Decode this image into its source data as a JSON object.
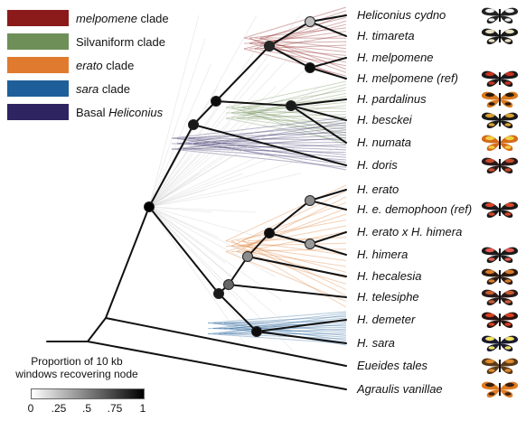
{
  "legend": {
    "items": [
      {
        "label": "",
        "label_italic": "melpomene",
        "label_rest": " clade",
        "color": "#8b1a1a"
      },
      {
        "label": "Silvaniform clade",
        "label_italic": "",
        "label_rest": "",
        "color": "#6e8f57"
      },
      {
        "label": "",
        "label_italic": "erato",
        "label_rest": " clade",
        "color": "#e07a2e"
      },
      {
        "label": "",
        "label_italic": "sara",
        "label_rest": " clade",
        "color": "#1f5f99"
      },
      {
        "label": "Basal ",
        "label_italic": "Heliconius",
        "label_rest": "",
        "color": "#2e2560"
      }
    ]
  },
  "taxa": [
    {
      "name": "Heliconius cydno",
      "wing_color": "#222222",
      "wing_accent": "#f2f2f2"
    },
    {
      "name": "H. timareta",
      "wing_color": "#1a1a1a",
      "wing_accent": "#e8e0c0"
    },
    {
      "name": "H. melpomene",
      "wing_color": "",
      "wing_accent": ""
    },
    {
      "name": "H. melpomene (ref)",
      "wing_color": "#1a1a1a",
      "wing_accent": "#c8321e"
    },
    {
      "name": "H. pardalinus",
      "wing_color": "#d9791c",
      "wing_accent": "#2a1a0a"
    },
    {
      "name": "H. besckei",
      "wing_color": "#1a1a1a",
      "wing_accent": "#d8a030"
    },
    {
      "name": "H. numata",
      "wing_color": "#d46a1a",
      "wing_accent": "#f0d040"
    },
    {
      "name": "H. doris",
      "wing_color": "#2a1a1a",
      "wing_accent": "#c84a2a"
    },
    {
      "name": "H. erato",
      "wing_color": "",
      "wing_accent": ""
    },
    {
      "name": "H. e. demophoon (ref)",
      "wing_color": "#1a1a1a",
      "wing_accent": "#d8462a"
    },
    {
      "name": "H. erato x H. himera",
      "wing_color": "",
      "wing_accent": ""
    },
    {
      "name": "H. himera",
      "wing_color": "#1a1a1a",
      "wing_accent": "#e85a50"
    },
    {
      "name": "H. hecalesia",
      "wing_color": "#2a1a10",
      "wing_accent": "#d87a2a"
    },
    {
      "name": "H. telesiphe",
      "wing_color": "#2a1a1a",
      "wing_accent": "#c85a30"
    },
    {
      "name": "H. demeter",
      "wing_color": "#2a1410",
      "wing_accent": "#d84020"
    },
    {
      "name": "H. sara",
      "wing_color": "#1a1a30",
      "wing_accent": "#f0e060"
    },
    {
      "name": "Eueides tales",
      "wing_color": "#5a3a1a",
      "wing_accent": "#e08a2a"
    },
    {
      "name": "Agraulis vanillae",
      "wing_color": "#e07a20",
      "wing_accent": "#3a2010"
    }
  ],
  "scale": {
    "title_line1": "Proportion of 10 kb",
    "title_line2": "windows recovering node",
    "ticks": [
      "0",
      ".25",
      ".5",
      ".75",
      "1"
    ],
    "tick_values": [
      0,
      0.25,
      0.5,
      0.75,
      1
    ]
  },
  "nodes": [
    {
      "id": "cydno_timareta",
      "support": 0.25
    },
    {
      "id": "melpomene_pair",
      "support": 0.95
    },
    {
      "id": "melpomene_clade",
      "support": 0.85
    },
    {
      "id": "silvaniform",
      "support": 0.9
    },
    {
      "id": "melp_silv",
      "support": 0.95
    },
    {
      "id": "doris_split",
      "support": 0.9
    },
    {
      "id": "root_heliconius",
      "support": 1.0
    },
    {
      "id": "erato_pair",
      "support": 0.45
    },
    {
      "id": "erato_himera",
      "support": 0.4
    },
    {
      "id": "erato_group",
      "support": 0.95
    },
    {
      "id": "erato_hecalesia",
      "support": 0.45
    },
    {
      "id": "erato_telesiphe",
      "support": 0.6
    },
    {
      "id": "erato_sara",
      "support": 0.9
    },
    {
      "id": "sara_demeter",
      "support": 0.95
    }
  ],
  "colors": {
    "branch": "#111111",
    "background_tree": "#d0d0d0"
  }
}
